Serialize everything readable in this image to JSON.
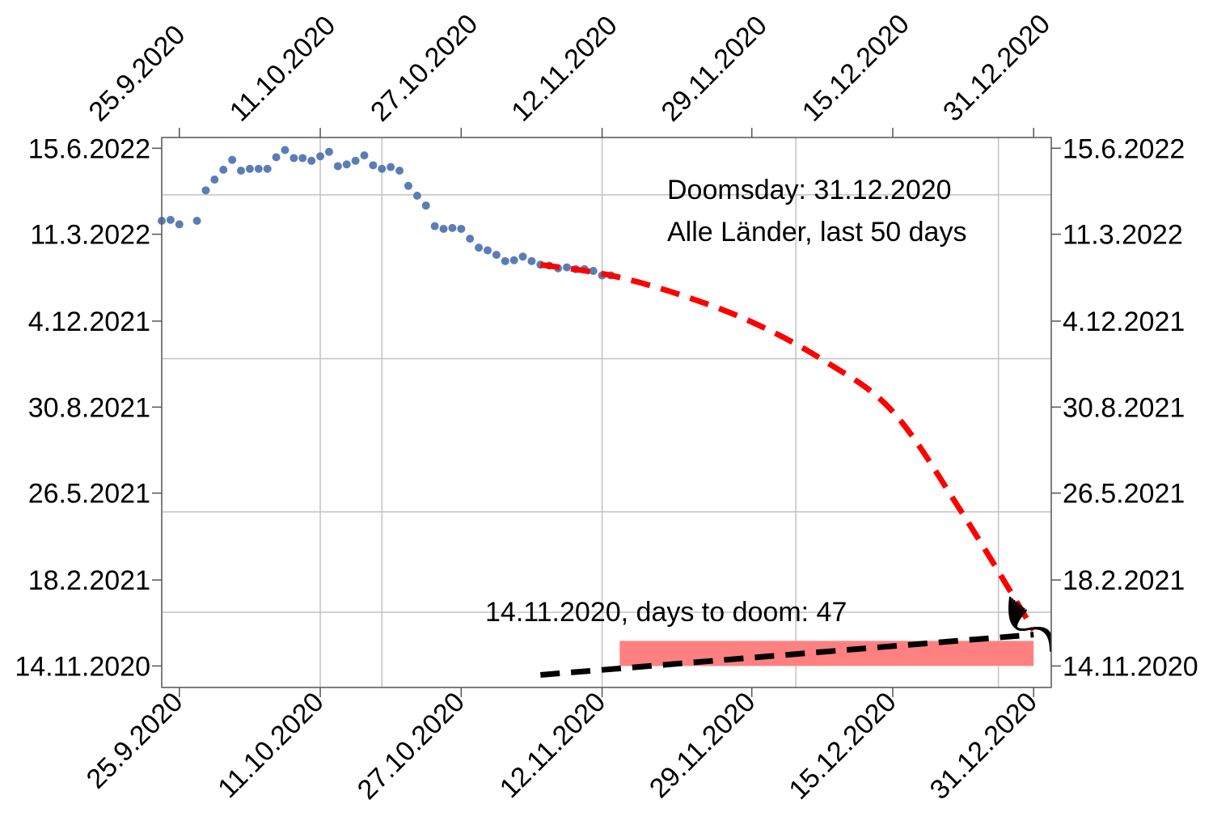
{
  "chart_data": {
    "type": "scatter",
    "title": "",
    "xlabel": "",
    "ylabel": "",
    "x_axis": {
      "kind": "date",
      "ticks": [
        "2020-09-25",
        "2020-10-11",
        "2020-10-27",
        "2020-11-12",
        "2020-11-29",
        "2020-12-15",
        "2020-12-31"
      ],
      "tick_labels": [
        "25.9.2020",
        "11.10.2020",
        "27.10.2020",
        "12.11.2020",
        "29.11.2020",
        "15.12.2020",
        "31.12.2020"
      ],
      "range": [
        "2020-09-23",
        "2021-01-02"
      ],
      "gridlines": [
        "2020-10-11",
        "2020-10-18",
        "2020-11-12",
        "2020-12-04",
        "2020-12-27"
      ]
    },
    "y_axis": {
      "kind": "date",
      "ticks": [
        "2020-11-14",
        "2021-02-18",
        "2021-05-26",
        "2021-08-30",
        "2021-12-04",
        "2022-03-11",
        "2022-06-15"
      ],
      "tick_labels": [
        "14.11.2020",
        "18.2.2021",
        "26.5.2021",
        "30.8.2021",
        "4.12.2021",
        "11.3.2022",
        "15.6.2022"
      ],
      "range": [
        "2020-10-21",
        "2022-06-27"
      ],
      "gridlines": [
        "2021-01-13",
        "2021-05-05",
        "2021-10-23",
        "2022-04-24"
      ]
    },
    "grid": true,
    "series": [
      {
        "kind": "points",
        "color": "#5b7db6",
        "points": [
          [
            "2020-09-23",
            "2022-03-26"
          ],
          [
            "2020-09-24",
            "2022-03-27"
          ],
          [
            "2020-09-25",
            "2022-03-22"
          ],
          [
            "2020-09-27",
            "2022-03-26"
          ],
          [
            "2020-09-28",
            "2022-04-29"
          ],
          [
            "2020-09-29",
            "2022-05-11"
          ],
          [
            "2020-09-30",
            "2022-05-22"
          ],
          [
            "2020-10-01",
            "2022-06-02"
          ],
          [
            "2020-10-02",
            "2022-05-21"
          ],
          [
            "2020-10-03",
            "2022-05-23"
          ],
          [
            "2020-10-04",
            "2022-05-23"
          ],
          [
            "2020-10-05",
            "2022-05-23"
          ],
          [
            "2020-10-06",
            "2022-06-05"
          ],
          [
            "2020-10-07",
            "2022-06-13"
          ],
          [
            "2020-10-08",
            "2022-06-04"
          ],
          [
            "2020-10-09",
            "2022-06-04"
          ],
          [
            "2020-10-10",
            "2022-06-01"
          ],
          [
            "2020-10-11",
            "2022-06-06"
          ],
          [
            "2020-10-12",
            "2022-06-11"
          ],
          [
            "2020-10-13",
            "2022-05-26"
          ],
          [
            "2020-10-14",
            "2022-05-28"
          ],
          [
            "2020-10-15",
            "2022-06-01"
          ],
          [
            "2020-10-16",
            "2022-06-07"
          ],
          [
            "2020-10-17",
            "2022-05-27"
          ],
          [
            "2020-10-18",
            "2022-05-23"
          ],
          [
            "2020-10-19",
            "2022-05-25"
          ],
          [
            "2020-10-20",
            "2022-05-21"
          ],
          [
            "2020-10-21",
            "2022-05-04"
          ],
          [
            "2020-10-22",
            "2022-04-23"
          ],
          [
            "2020-10-23",
            "2022-04-12"
          ],
          [
            "2020-10-24",
            "2022-03-20"
          ],
          [
            "2020-10-25",
            "2022-03-17"
          ],
          [
            "2020-10-26",
            "2022-03-18"
          ],
          [
            "2020-10-27",
            "2022-03-17"
          ],
          [
            "2020-10-28",
            "2022-03-06"
          ],
          [
            "2020-10-29",
            "2022-02-24"
          ],
          [
            "2020-10-30",
            "2022-02-21"
          ],
          [
            "2020-10-31",
            "2022-02-16"
          ],
          [
            "2020-11-01",
            "2022-02-09"
          ],
          [
            "2020-11-02",
            "2022-02-10"
          ],
          [
            "2020-11-03",
            "2022-02-14"
          ],
          [
            "2020-11-04",
            "2022-02-09"
          ],
          [
            "2020-11-05",
            "2022-02-05"
          ],
          [
            "2020-11-06",
            "2022-02-04"
          ],
          [
            "2020-11-07",
            "2022-02-01"
          ],
          [
            "2020-11-08",
            "2022-02-02"
          ],
          [
            "2020-11-09",
            "2022-01-31"
          ],
          [
            "2020-11-10",
            "2022-01-31"
          ],
          [
            "2020-11-11",
            "2022-01-29"
          ],
          [
            "2020-11-12",
            "2022-01-24"
          ],
          [
            "2020-11-13",
            "2022-01-24"
          ]
        ]
      },
      {
        "kind": "dashed-fit",
        "color": "#ff0000",
        "points": [
          [
            "2020-11-05",
            "2022-02-05"
          ],
          [
            "2020-11-13",
            "2022-01-24"
          ],
          [
            "2020-11-21",
            "2022-01-02"
          ],
          [
            "2020-11-29",
            "2021-12-03"
          ],
          [
            "2020-12-07",
            "2021-10-22"
          ],
          [
            "2020-12-15",
            "2021-08-25"
          ],
          [
            "2020-12-23",
            "2021-05-02"
          ],
          [
            "2020-12-31",
            "2020-12-24"
          ]
        ]
      },
      {
        "kind": "dashed-fit",
        "color": "#000000",
        "points": [
          [
            "2020-11-05",
            "2020-11-04"
          ],
          [
            "2020-12-31",
            "2020-12-19"
          ]
        ]
      }
    ],
    "shaded_region": {
      "color": "#ff8080",
      "x": [
        "2020-11-14",
        "2020-12-31"
      ],
      "y": [
        "2020-11-14",
        "2020-12-12"
      ]
    },
    "scribble_at": [
      "2020-12-30",
      "2020-12-27"
    ],
    "annotations": {
      "doomsday": "Doomsday: 31.12.2020",
      "scope": "Alle Länder, last 50 days",
      "current": "14.11.2020, days to doom: 47"
    }
  }
}
